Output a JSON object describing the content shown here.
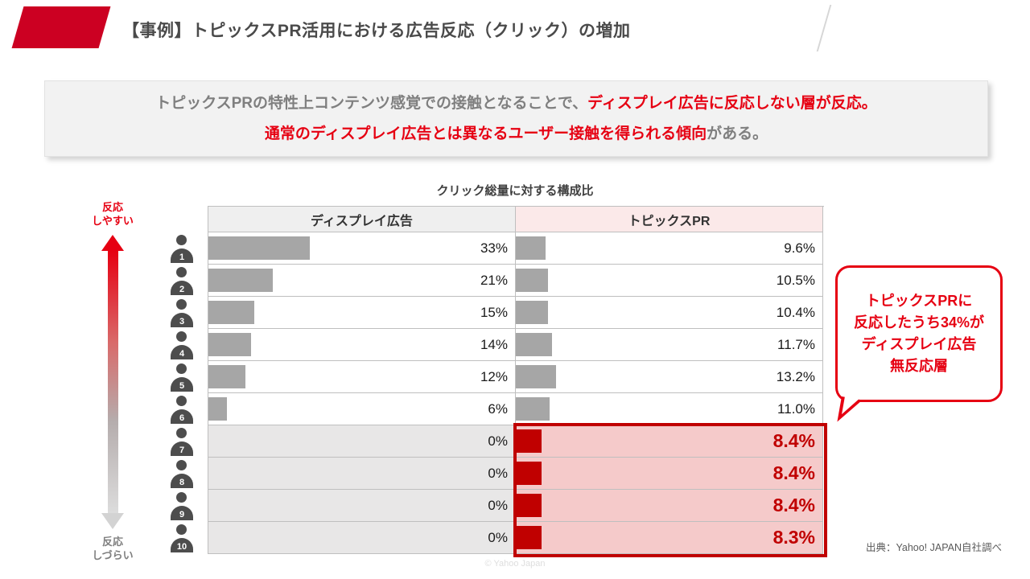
{
  "header": {
    "title": "【事例】トピックスPR活用における広告反応（クリック）の増加"
  },
  "summary": {
    "line1_gray": "トピックスPRの特性上コンテンツ感覚での接触となることで、",
    "line1_red": "ディスプレイ広告に反応しない層が反応。",
    "line2_red": "通常のディスプレイ広告とは異なるユーザー接触を得られる傾向",
    "line2_gray": "がある。"
  },
  "chart": {
    "title": "クリック総量に対する構成比",
    "axis_top_label": "反応\nしやすい",
    "axis_bottom_label": "反応\nしづらい",
    "columns": {
      "display": "ディスプレイ広告",
      "topics": "トピックスPR"
    },
    "rows": [
      {
        "rank": "1",
        "display_label": "33%",
        "display_pct": 33,
        "topics_label": "9.6%",
        "topics_pct": 9.6,
        "highlight": false
      },
      {
        "rank": "2",
        "display_label": "21%",
        "display_pct": 21,
        "topics_label": "10.5%",
        "topics_pct": 10.5,
        "highlight": false
      },
      {
        "rank": "3",
        "display_label": "15%",
        "display_pct": 15,
        "topics_label": "10.4%",
        "topics_pct": 10.4,
        "highlight": false
      },
      {
        "rank": "4",
        "display_label": "14%",
        "display_pct": 14,
        "topics_label": "11.7%",
        "topics_pct": 11.7,
        "highlight": false
      },
      {
        "rank": "5",
        "display_label": "12%",
        "display_pct": 12,
        "topics_label": "13.2%",
        "topics_pct": 13.2,
        "highlight": false
      },
      {
        "rank": "6",
        "display_label": "6%",
        "display_pct": 6,
        "topics_label": "11.0%",
        "topics_pct": 11.0,
        "highlight": false
      },
      {
        "rank": "7",
        "display_label": "0%",
        "display_pct": 0,
        "topics_label": "8.4%",
        "topics_pct": 8.4,
        "highlight": true
      },
      {
        "rank": "8",
        "display_label": "0%",
        "display_pct": 0,
        "topics_label": "8.4%",
        "topics_pct": 8.4,
        "highlight": true
      },
      {
        "rank": "9",
        "display_label": "0%",
        "display_pct": 0,
        "topics_label": "8.4%",
        "topics_pct": 8.4,
        "highlight": true
      },
      {
        "rank": "10",
        "display_label": "0%",
        "display_pct": 0,
        "topics_label": "8.3%",
        "topics_pct": 8.3,
        "highlight": true
      }
    ]
  },
  "callout": {
    "text": "トピックスPRに\n反応したうち34%が\nディスプレイ広告\n無反応層"
  },
  "footer": {
    "source": "出典：Yahoo! JAPAN自社調べ",
    "copyright": "© Yahoo Japan"
  },
  "colors": {
    "accent_red": "#cc0022",
    "red_text": "#e60012",
    "bar_red": "#c00000",
    "bar_gray": "#a6a6a6",
    "pink_bg": "#f5caca",
    "pink_header": "#fbe9e9",
    "gray_header": "#efefef",
    "gray_row": "#e8e7e7",
    "border_gray": "#bfbfbf",
    "text_dark": "#404040",
    "text_gray": "#7f7f7f"
  },
  "chart_data": {
    "type": "bar",
    "orientation": "horizontal",
    "title": "クリック総量に対する構成比",
    "categories": [
      "1",
      "2",
      "3",
      "4",
      "5",
      "6",
      "7",
      "8",
      "9",
      "10"
    ],
    "series": [
      {
        "name": "ディスプレイ広告",
        "values": [
          33,
          21,
          15,
          14,
          12,
          6,
          0,
          0,
          0,
          0
        ],
        "unit": "%"
      },
      {
        "name": "トピックスPR",
        "values": [
          9.6,
          10.5,
          10.4,
          11.7,
          13.2,
          11.0,
          8.4,
          8.4,
          8.4,
          8.3
        ],
        "unit": "%"
      }
    ],
    "highlighted_categories": [
      "7",
      "8",
      "9",
      "10"
    ],
    "axis_annotation_top": "反応しやすい",
    "axis_annotation_bottom": "反応しづらい",
    "annotation": "トピックスPRに反応したうち34%がディスプレイ広告無反応層",
    "legend_position": "column-headers",
    "grid": false
  }
}
